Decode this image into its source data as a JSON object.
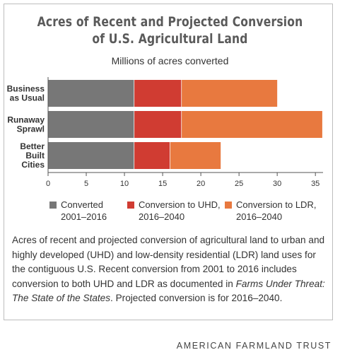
{
  "header": {
    "title_line1": "Acres of Recent and Projected Conversion",
    "title_line2": "of U.S. Agricultural Land",
    "subtitle": "Millions of acres converted"
  },
  "chart_data": {
    "type": "bar",
    "orientation": "horizontal",
    "stacked": true,
    "categories": [
      [
        "Business",
        "as Usual"
      ],
      [
        "Runaway",
        "Sprawl"
      ],
      [
        "Better",
        "Built",
        "Cities"
      ]
    ],
    "series": [
      {
        "name": "Converted 2001–2016",
        "legend_lines": [
          "Converted",
          "2001–2016"
        ],
        "color": "#777777",
        "values": [
          11.3,
          11.3,
          11.3
        ]
      },
      {
        "name": "Conversion to UHD, 2016–2040",
        "legend_lines": [
          "Conversion to UHD,",
          "2016–2040"
        ],
        "color": "#d03c32",
        "values": [
          6.2,
          6.2,
          4.7
        ]
      },
      {
        "name": "Conversion to LDR, 2016–2040",
        "legend_lines": [
          "Conversion to LDR,",
          "2016–2040"
        ],
        "color": "#e8793f",
        "values": [
          12.5,
          18.4,
          6.6
        ]
      }
    ],
    "xlim": [
      0,
      36
    ],
    "xticks": [
      0,
      5,
      10,
      15,
      20,
      25,
      30,
      35
    ],
    "legend_position": "bottom",
    "grid": false
  },
  "caption": {
    "part1": "Acres of recent and projected conversion of agricultural land to urban and highly developed (UHD) and low-density residential (LDR) land uses for the contiguous U.S. Recent conversion from 2001 to 2016 includes conversion to both UHD and LDR as documented in ",
    "italic": "Farms Under Threat: The State of the States",
    "part2": ". Projected conversion is for 2016–2040."
  },
  "brand": "AMERICAN FARMLAND TRUST"
}
